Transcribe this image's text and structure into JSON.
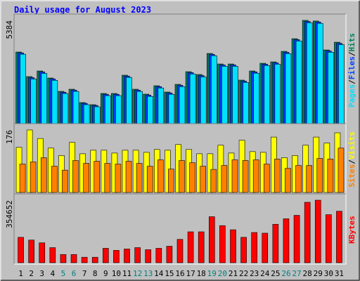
{
  "chart_data": {
    "type": "bar",
    "title": "Daily usage for August 2023",
    "categories": [
      "1",
      "2",
      "3",
      "4",
      "5",
      "6",
      "7",
      "8",
      "9",
      "10",
      "11",
      "12",
      "13",
      "14",
      "15",
      "16",
      "17",
      "18",
      "19",
      "20",
      "21",
      "22",
      "23",
      "24",
      "25",
      "26",
      "27",
      "28",
      "29",
      "30",
      "31"
    ],
    "category_colors": [
      "#000000",
      "#000000",
      "#000000",
      "#000000",
      "#008080",
      "#008080",
      "#000000",
      "#000000",
      "#000000",
      "#000000",
      "#000000",
      "#008080",
      "#008080",
      "#000000",
      "#000000",
      "#000000",
      "#000000",
      "#000000",
      "#008080",
      "#008080",
      "#000000",
      "#000000",
      "#000000",
      "#000000",
      "#000000",
      "#008080",
      "#008080",
      "#000000",
      "#000000",
      "#000000",
      "#000000"
    ],
    "separator": "/",
    "panels": [
      {
        "ylim": [
          0,
          5384
        ],
        "yticks": [
          5384
        ],
        "series": [
          {
            "name": "Hits",
            "color": "#008060",
            "values": [
              3735,
              2454,
              2746,
              2380,
              1684,
              1794,
              1098,
              988,
              1574,
              1574,
              2526,
              1794,
              1537,
              1977,
              1647,
              2050,
              2709,
              2563,
              3660,
              3111,
              3111,
              2270,
              2746,
              3148,
              3221,
              3770,
              4429,
              5384,
              5350,
              3843,
              4246
            ]
          },
          {
            "name": "Files",
            "color": "#0040ff",
            "values": [
              3690,
              2400,
              2700,
              2330,
              1640,
              1750,
              1060,
              950,
              1530,
              1530,
              2480,
              1750,
              1490,
              1930,
              1600,
              2000,
              2660,
              2510,
              3610,
              3060,
              3060,
              2220,
              2700,
              3100,
              3170,
              3720,
              4380,
              5330,
              5300,
              3790,
              4190
            ]
          },
          {
            "name": "Pages",
            "color": "#00e0ff",
            "values": [
              3620,
              2330,
              2620,
              2260,
              1570,
              1680,
              990,
              880,
              1460,
              1460,
              2410,
              1680,
              1420,
              1860,
              1530,
              1930,
              2590,
              2440,
              3540,
              2990,
              2990,
              2150,
              2630,
              3030,
              3100,
              3650,
              4310,
              5260,
              5230,
              3720,
              4120
            ]
          }
        ]
      },
      {
        "ylim": [
          0,
          176
        ],
        "yticks": [
          176
        ],
        "series": [
          {
            "name": "Visits",
            "color": "#ffff00",
            "values": [
              127,
              176,
              152,
              125,
              104,
              141,
              109,
              119,
              119,
              111,
              119,
              119,
              113,
              121,
              119,
              135,
              121,
              109,
              109,
              133,
              111,
              147,
              115,
              113,
              156,
              98,
              104,
              133,
              156,
              139,
              168
            ]
          },
          {
            "name": "Sites",
            "color": "#ff8000",
            "values": [
              80,
              86,
              98,
              74,
              63,
              90,
              82,
              88,
              82,
              80,
              88,
              82,
              74,
              92,
              66,
              90,
              84,
              74,
              65,
              76,
              92,
              90,
              92,
              80,
              94,
              68,
              76,
              76,
              96,
              94,
              125
            ]
          }
        ]
      },
      {
        "ylim": [
          0,
          354652
        ],
        "yticks": [
          354652
        ],
        "series": [
          {
            "name": "KBytes",
            "color": "#ff0000",
            "values": [
              144189,
              128601,
              113013,
              85734,
              46764,
              46764,
              31176,
              31176,
              81837,
              70146,
              77940,
              85734,
              74043,
              81837,
              93528,
              132498,
              175365,
              175365,
              261099,
              210438,
              187056,
              144189,
              171468,
              167571,
              218232,
              249408,
              268893,
              342936,
              354652,
              272790,
              292275
            ]
          }
        ]
      }
    ]
  }
}
